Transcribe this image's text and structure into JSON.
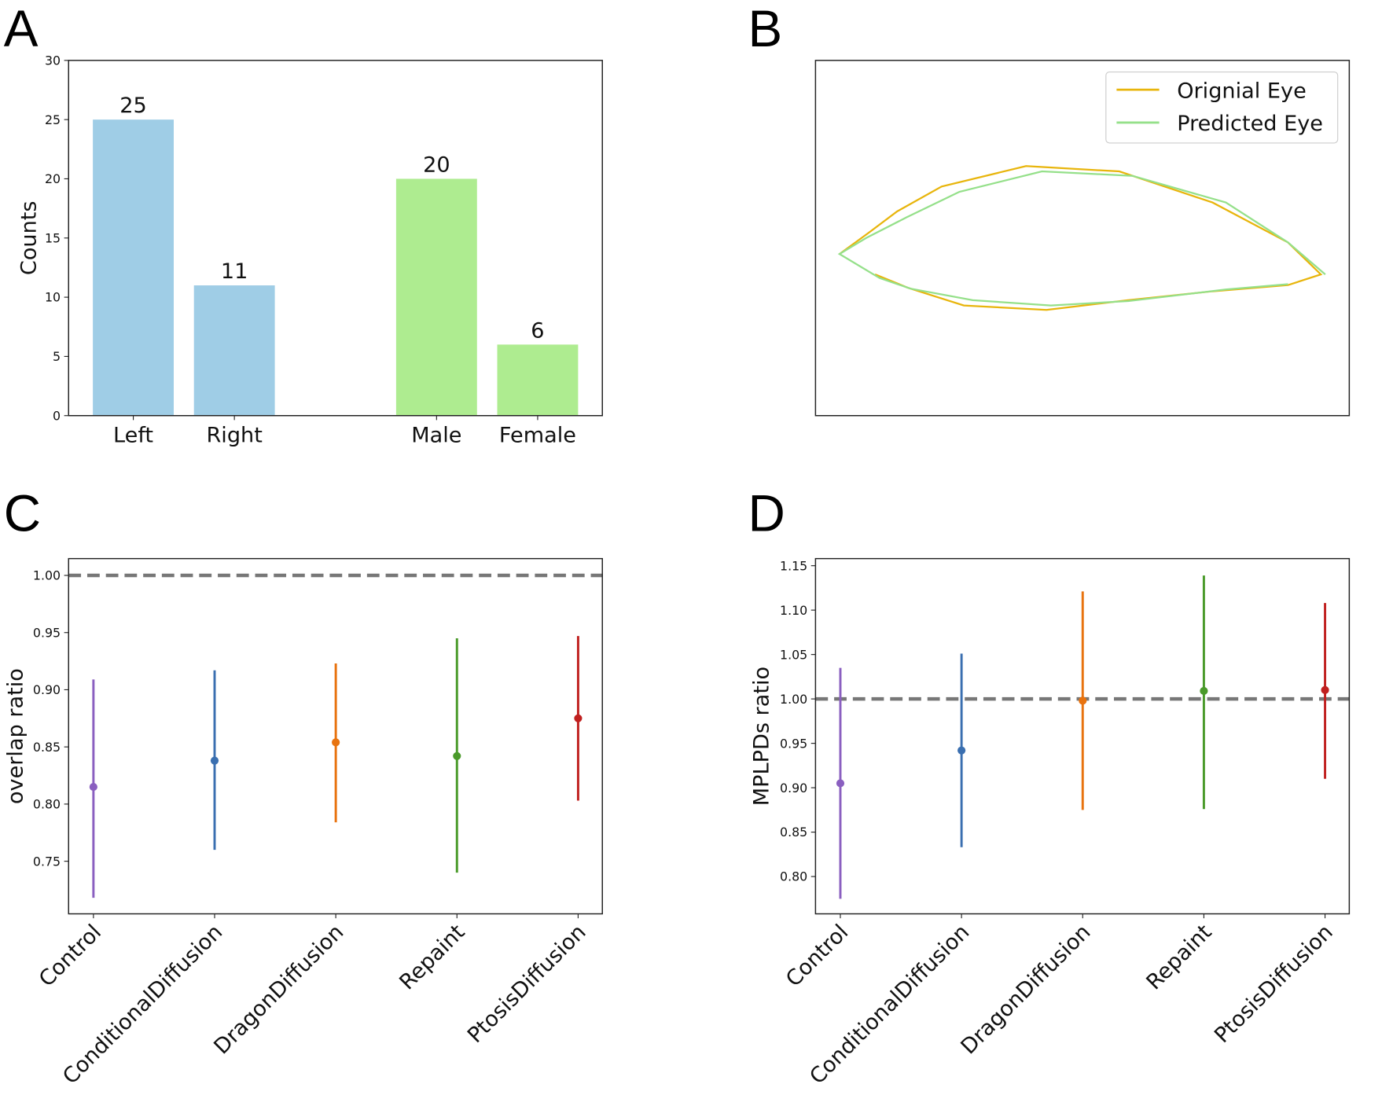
{
  "panel_letters": [
    "A",
    "B",
    "C",
    "D"
  ],
  "chart_data": [
    {
      "panel": "A",
      "type": "bar",
      "categories": [
        "Left",
        "Right",
        "Male",
        "Female"
      ],
      "x": [
        0,
        1,
        3,
        4
      ],
      "values": [
        25,
        11,
        20,
        6
      ],
      "data_labels": [
        "25",
        "11",
        "20",
        "6"
      ],
      "colors": [
        "#9fcde6",
        "#9fcde6",
        "#aeec90",
        "#aeec90"
      ],
      "bar_width": 0.8,
      "ylabel": "Counts",
      "xlim": [
        -0.64,
        4.64
      ],
      "ylim": [
        0,
        30
      ],
      "yticks": [
        0,
        5,
        10,
        15,
        20,
        25,
        30
      ]
    },
    {
      "panel": "B",
      "type": "line",
      "xlim": [
        0,
        601
      ],
      "ylim": [
        0,
        400
      ],
      "axes_ticks": false,
      "legend_position": "top-right",
      "series": [
        {
          "name": "Orignial Eye",
          "color": "#e8b50c",
          "points": [
            [
              67,
              159
            ],
            [
              104,
              144
            ],
            [
              167,
              124
            ],
            [
              260,
              119
            ],
            [
              352,
              130
            ],
            [
              447,
              140
            ],
            [
              532,
              147
            ],
            [
              569,
              159
            ],
            [
              532,
              195
            ],
            [
              447,
              240
            ],
            [
              342,
              275
            ],
            [
              237,
              281
            ],
            [
              142,
              258
            ],
            [
              92,
              230
            ],
            [
              60,
              206
            ],
            [
              27,
              182
            ]
          ]
        },
        {
          "name": "Predicted Eye",
          "color": "#95e08a",
          "points": [
            [
              574,
              159
            ],
            [
              532,
              195
            ],
            [
              462,
              240
            ],
            [
              357,
              270
            ],
            [
              255,
              275
            ],
            [
              162,
              252
            ],
            [
              102,
              223
            ],
            [
              57,
              200
            ],
            [
              27,
              182
            ],
            [
              72,
              155
            ],
            [
              107,
              143
            ],
            [
              177,
              130
            ],
            [
              265,
              124
            ],
            [
              352,
              129
            ],
            [
              462,
              142
            ],
            [
              532,
              148
            ]
          ]
        }
      ]
    },
    {
      "panel": "C",
      "type": "scatter",
      "ylabel": "overlap ratio",
      "categories": [
        "Control",
        "ConditionalDiffusion",
        "DragonDiffusion",
        "Repaint",
        "PtosisDiffusion"
      ],
      "means": [
        0.815,
        0.838,
        0.854,
        0.842,
        0.875
      ],
      "lower": [
        0.718,
        0.76,
        0.784,
        0.74,
        0.803
      ],
      "upper": [
        0.909,
        0.917,
        0.923,
        0.945,
        0.947
      ],
      "colors": [
        "#8a5fc0",
        "#3a6fb0",
        "#e8730f",
        "#4a9a2a",
        "#c0201f"
      ],
      "reference_line": 1.0,
      "xlim": [
        -0.205,
        4.2
      ],
      "ylim": [
        0.704,
        1.0147
      ],
      "yticks": [
        0.75,
        0.8,
        0.85,
        0.9,
        0.95,
        1.0
      ],
      "ytick_labels": [
        "0.75",
        "0.80",
        "0.85",
        "0.90",
        "0.95",
        "1.00"
      ]
    },
    {
      "panel": "D",
      "type": "scatter",
      "ylabel": "MPLPDs ratio",
      "categories": [
        "Control",
        "ConditionalDiffusion",
        "DragonDiffusion",
        "Repaint",
        "PtosisDiffusion"
      ],
      "means": [
        0.905,
        0.942,
        0.998,
        1.009,
        1.01
      ],
      "lower": [
        0.775,
        0.833,
        0.875,
        0.876,
        0.91
      ],
      "upper": [
        1.035,
        1.051,
        1.121,
        1.139,
        1.108
      ],
      "colors": [
        "#8a5fc0",
        "#3a6fb0",
        "#e8730f",
        "#4a9a2a",
        "#c0201f"
      ],
      "reference_line": 1.0,
      "xlim": [
        -0.205,
        4.2
      ],
      "ylim": [
        0.758,
        1.158
      ],
      "yticks": [
        0.8,
        0.85,
        0.9,
        0.95,
        1.0,
        1.05,
        1.1,
        1.15
      ],
      "ytick_labels": [
        "0.80",
        "0.85",
        "0.90",
        "0.95",
        "1.00",
        "1.05",
        "1.10",
        "1.15"
      ]
    }
  ]
}
